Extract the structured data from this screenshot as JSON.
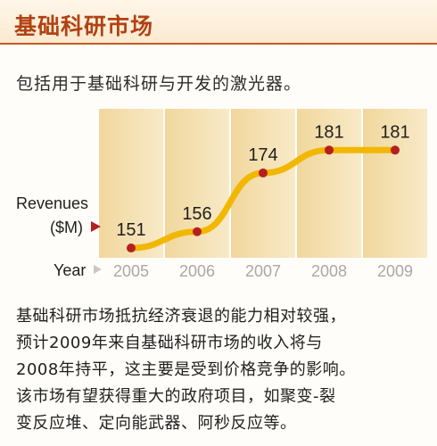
{
  "header": {
    "title": "基础科研市场"
  },
  "subtitle": "包括用于基础科研与开发的激光器。",
  "chart_data": {
    "type": "line",
    "title": "",
    "ylabel_line1": "Revenues",
    "ylabel_line2": "($M)",
    "xlabel": "Year",
    "categories": [
      "2005",
      "2006",
      "2007",
      "2008",
      "2009"
    ],
    "values": [
      151,
      156,
      174,
      181,
      181
    ],
    "ylim": [
      145,
      186
    ],
    "colors": {
      "line": "#f2b700",
      "marker": "#b51f1f",
      "arrow": "#b51f1f",
      "column_dark": "#f1d79d",
      "column_light": "#f8eac8",
      "year_label": "#a8a8a8"
    }
  },
  "body_lines": [
    "基础科研市场抵抗经济衰退的能力相对较强，",
    "预计2009年来自基础科研市场的收入将与",
    "2008年持平，这主要是受到价格竞争的影响。",
    "该市场有望获得重大的政府项目，如聚变-裂",
    "变反应堆、定向能武器、阿秒反应等。"
  ]
}
